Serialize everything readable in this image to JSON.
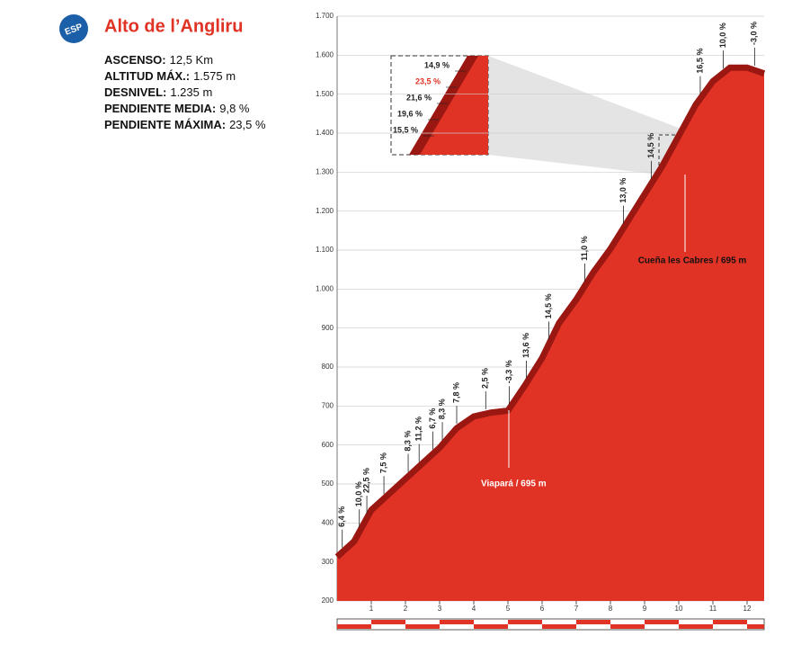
{
  "header": {
    "logo": "ESP",
    "title": "Alto de l’Angliru"
  },
  "stats": [
    {
      "label": "ASCENSO:",
      "value": "12,5 Km"
    },
    {
      "label": "ALTITUD MÁX.:",
      "value": "1.575 m"
    },
    {
      "label": "DESNIVEL:",
      "value": "1.235 m"
    },
    {
      "label": "PENDIENTE MEDIA:",
      "value": "9,8 %"
    },
    {
      "label": "PENDIENTE MÁXIMA:",
      "value": "23,5 %"
    }
  ],
  "chart_data": {
    "type": "area",
    "color": "#e03325",
    "edge_color": "#9a1712",
    "x": [
      0,
      0.5,
      1,
      1.5,
      2,
      2.5,
      3,
      3.5,
      4,
      4.5,
      5,
      5.5,
      6,
      6.5,
      7,
      7.5,
      8,
      8.5,
      9,
      9.5,
      10,
      10.5,
      11,
      11.5,
      12,
      12.5
    ],
    "values": [
      320,
      360,
      440,
      480,
      520,
      560,
      600,
      650,
      680,
      690,
      695,
      760,
      830,
      920,
      980,
      1050,
      1110,
      1180,
      1250,
      1320,
      1400,
      1480,
      1540,
      1575,
      1575,
      1560
    ],
    "xlim": [
      0,
      12.5
    ],
    "ylim": [
      200,
      1700
    ],
    "xticks": [
      1,
      2,
      3,
      4,
      5,
      6,
      7,
      8,
      9,
      10,
      11,
      12
    ],
    "yticks": [
      200,
      300,
      400,
      500,
      600,
      700,
      800,
      900,
      {
        "value": 1000,
        "label": "1.000"
      },
      {
        "value": 1100,
        "label": "1.100"
      },
      {
        "value": 1200,
        "label": "1.200"
      },
      {
        "value": 1300,
        "label": "1.300"
      },
      {
        "value": 1400,
        "label": "1.400"
      },
      {
        "value": 1500,
        "label": "1.500"
      },
      {
        "value": 1600,
        "label": "1.600"
      },
      {
        "value": 1700,
        "label": "1.700"
      }
    ],
    "grid": true,
    "gradients": {
      "x": [
        0.15,
        0.65,
        0.87,
        1.37,
        2.08,
        2.4,
        2.8,
        3.08,
        3.5,
        4.35,
        5.04,
        5.54,
        6.2,
        7.25,
        8.38,
        9.2,
        10.63,
        11.3,
        12.22
      ],
      "values": [
        6.4,
        10.0,
        22.5,
        7.5,
        8.3,
        11.2,
        6.7,
        8.3,
        7.8,
        2.5,
        -3.3,
        13.6,
        14.5,
        11.0,
        13.0,
        14.5,
        16.5,
        10.0,
        -3.0
      ],
      "value_labels": [
        "6,4 %",
        "10,0 %",
        "22,5 %",
        "7,5 %",
        "8,3 %",
        "11,2 %",
        "6,7 %",
        "8,3 %",
        "7,8 %",
        "2,5 %",
        "-3,3 %",
        "13,6 %",
        "14,5 %",
        "11,0 %",
        "13,0 %",
        "14,5 %",
        "16,5 %",
        "10,0 %",
        "-3,0 %"
      ]
    },
    "annotations": [
      "Viapará / 695 m",
      "Cueña les Cabres / 695 m"
    ],
    "inset": {
      "values": [
        14.9,
        23.5,
        21.6,
        19.6,
        15.5
      ],
      "value_labels": [
        "14,9 %",
        "23,5 %",
        "21,6 %",
        "19,6 %",
        "15,5 %"
      ]
    }
  }
}
